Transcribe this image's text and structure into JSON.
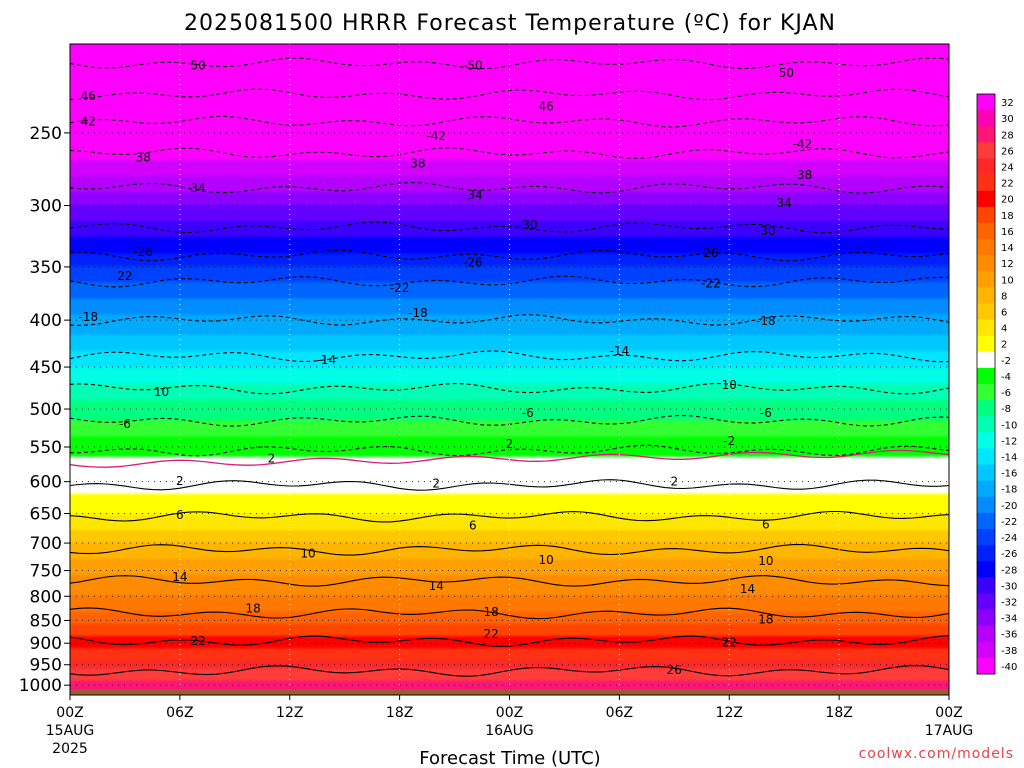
{
  "chart_data": {
    "type": "heatmap",
    "title": "2025081500 HRRR Forecast Temperature (ºC) for KJAN",
    "xlabel": "Forecast Time (UTC)",
    "ylabel": "",
    "y_scale": "log-pressure",
    "ylim": [
      1025,
      200
    ],
    "y_ticks": [
      250,
      300,
      350,
      400,
      450,
      500,
      550,
      600,
      650,
      700,
      750,
      800,
      850,
      900,
      950,
      1000
    ],
    "x_ticks": [
      {
        "hour": 0,
        "label": "00Z",
        "sub1": "15AUG",
        "sub2": "2025"
      },
      {
        "hour": 6,
        "label": "06Z",
        "sub1": "",
        "sub2": ""
      },
      {
        "hour": 12,
        "label": "12Z",
        "sub1": "",
        "sub2": ""
      },
      {
        "hour": 18,
        "label": "18Z",
        "sub1": "",
        "sub2": ""
      },
      {
        "hour": 24,
        "label": "00Z",
        "sub1": "16AUG",
        "sub2": ""
      },
      {
        "hour": 30,
        "label": "06Z",
        "sub1": "",
        "sub2": ""
      },
      {
        "hour": 36,
        "label": "12Z",
        "sub1": "",
        "sub2": ""
      },
      {
        "hour": 42,
        "label": "18Z",
        "sub1": "",
        "sub2": ""
      },
      {
        "hour": 48,
        "label": "00Z",
        "sub1": "17AUG",
        "sub2": ""
      }
    ],
    "grid": true,
    "surface_pressure": 1010,
    "surface_color": "#9c5a35",
    "colorbar_labels": [
      32,
      30,
      28,
      26,
      24,
      22,
      20,
      18,
      16,
      14,
      12,
      10,
      8,
      6,
      4,
      2,
      -2,
      -4,
      -6,
      -8,
      -10,
      -12,
      -14,
      -16,
      -18,
      -20,
      -22,
      -24,
      -26,
      -28,
      -30,
      -32,
      -34,
      -36,
      -38,
      -40
    ],
    "colorbar_colors": [
      "#ff00ff",
      "#ff00b4",
      "#ff1478",
      "#ff3c3c",
      "#ff2828",
      "#ff3214",
      "#ff0000",
      "#ff4600",
      "#ff6400",
      "#ff7800",
      "#ff8c00",
      "#ffa000",
      "#ffb400",
      "#ffc800",
      "#ffe600",
      "#ffff00",
      "#ffffff",
      "#00ff00",
      "#33ff33",
      "#00ff7f",
      "#00ffb4",
      "#00ffe6",
      "#00e6ff",
      "#00c8ff",
      "#00aaff",
      "#008cff",
      "#0064ff",
      "#0040ff",
      "#0020ff",
      "#0000ff",
      "#3c00ff",
      "#6400ff",
      "#8c00ff",
      "#b400ff",
      "#d200ff",
      "#ff00ff"
    ],
    "profile_pressure": [
      1000,
      950,
      900,
      850,
      800,
      750,
      700,
      650,
      600,
      550,
      500,
      450,
      400,
      350,
      300,
      250,
      200
    ],
    "profile_temperature": [
      29,
      25,
      21,
      17.5,
      14,
      11.5,
      8,
      4,
      0.5,
      -3,
      -7,
      -12,
      -17.5,
      -24,
      -32,
      -42,
      -52
    ],
    "contours": [
      {
        "value": -50,
        "label": "-50",
        "pressure": 210,
        "dashed": true
      },
      {
        "value": -46,
        "label": "46",
        "pressure": 227,
        "dashed": true
      },
      {
        "value": -42,
        "label": "-42",
        "pressure": 243,
        "dashed": true
      },
      {
        "value": -38,
        "label": "38",
        "pressure": 263,
        "dashed": true
      },
      {
        "value": -34,
        "label": "-34",
        "pressure": 287,
        "dashed": true
      },
      {
        "value": -30,
        "label": "-30",
        "pressure": 317,
        "dashed": true
      },
      {
        "value": -26,
        "label": "-26",
        "pressure": 340,
        "dashed": true
      },
      {
        "value": -22,
        "label": "-22",
        "pressure": 363,
        "dashed": true
      },
      {
        "value": -18,
        "label": "-18",
        "pressure": 400,
        "dashed": true
      },
      {
        "value": -14,
        "label": "-14",
        "pressure": 438,
        "dashed": true
      },
      {
        "value": -10,
        "label": "10",
        "pressure": 475,
        "dashed": true
      },
      {
        "value": -6,
        "label": "-6",
        "pressure": 515,
        "dashed": true
      },
      {
        "value": -2,
        "label": "-2",
        "pressure": 555,
        "dashed": true
      },
      {
        "value": 2,
        "label": "2",
        "pressure": 605,
        "dashed": false
      },
      {
        "value": 6,
        "label": "6",
        "pressure": 655,
        "dashed": false
      },
      {
        "value": 10,
        "label": "10",
        "pressure": 712,
        "dashed": false
      },
      {
        "value": 14,
        "label": "14",
        "pressure": 770,
        "dashed": false
      },
      {
        "value": 18,
        "label": "18",
        "pressure": 835,
        "dashed": false
      },
      {
        "value": 22,
        "label": "22",
        "pressure": 895,
        "dashed": false
      },
      {
        "value": 26,
        "label": "26",
        "pressure": 965,
        "dashed": false
      }
    ],
    "label_positions": [
      {
        "label": "50",
        "hour": 7,
        "pressure": 211
      },
      {
        "label": "-50",
        "hour": 22,
        "pressure": 211
      },
      {
        "label": "-50",
        "hour": 39,
        "pressure": 215
      },
      {
        "label": "46",
        "hour": 1,
        "pressure": 228
      },
      {
        "label": "46",
        "hour": 26,
        "pressure": 234
      },
      {
        "label": "42",
        "hour": 1,
        "pressure": 243
      },
      {
        "label": "-42",
        "hour": 20,
        "pressure": 252
      },
      {
        "label": "-42",
        "hour": 40,
        "pressure": 257
      },
      {
        "label": "38",
        "hour": 4,
        "pressure": 266
      },
      {
        "label": "38",
        "hour": 19,
        "pressure": 270
      },
      {
        "label": "-38",
        "hour": 40,
        "pressure": 278
      },
      {
        "label": "34",
        "hour": 7,
        "pressure": 287
      },
      {
        "label": "-34",
        "hour": 22,
        "pressure": 292
      },
      {
        "label": "34",
        "hour": 39,
        "pressure": 298
      },
      {
        "label": "-30",
        "hour": 25,
        "pressure": 315
      },
      {
        "label": "-30",
        "hour": 38,
        "pressure": 320
      },
      {
        "label": "-26",
        "hour": 4,
        "pressure": 337
      },
      {
        "label": "-26",
        "hour": 22,
        "pressure": 346
      },
      {
        "label": "26",
        "hour": 35,
        "pressure": 338
      },
      {
        "label": "22",
        "hour": 3,
        "pressure": 358
      },
      {
        "label": "-22",
        "hour": 18,
        "pressure": 369
      },
      {
        "label": "-22",
        "hour": 35,
        "pressure": 365
      },
      {
        "label": "-18",
        "hour": 1,
        "pressure": 397
      },
      {
        "label": "-18",
        "hour": 19,
        "pressure": 393
      },
      {
        "label": "-18",
        "hour": 38,
        "pressure": 401
      },
      {
        "label": "-14",
        "hour": 14,
        "pressure": 442
      },
      {
        "label": "-14",
        "hour": 30,
        "pressure": 432
      },
      {
        "label": "10",
        "hour": 5,
        "pressure": 479
      },
      {
        "label": "10",
        "hour": 36,
        "pressure": 471
      },
      {
        "label": "-6",
        "hour": 3,
        "pressure": 519
      },
      {
        "label": "-6",
        "hour": 25,
        "pressure": 505
      },
      {
        "label": "-6",
        "hour": 38,
        "pressure": 505
      },
      {
        "label": "-2",
        "hour": 36,
        "pressure": 542
      },
      {
        "label": "2",
        "hour": 24,
        "pressure": 546
      },
      {
        "label": "2",
        "hour": 11,
        "pressure": 566
      },
      {
        "label": "2",
        "hour": 6,
        "pressure": 599
      },
      {
        "label": "2",
        "hour": 20,
        "pressure": 603
      },
      {
        "label": "2",
        "hour": 33,
        "pressure": 600
      },
      {
        "label": "6",
        "hour": 6,
        "pressure": 652
      },
      {
        "label": "6",
        "hour": 22,
        "pressure": 670
      },
      {
        "label": "6",
        "hour": 38,
        "pressure": 668
      },
      {
        "label": "10",
        "hour": 13,
        "pressure": 719
      },
      {
        "label": "10",
        "hour": 26,
        "pressure": 730
      },
      {
        "label": "10",
        "hour": 38,
        "pressure": 732
      },
      {
        "label": "14",
        "hour": 6,
        "pressure": 762
      },
      {
        "label": "14",
        "hour": 20,
        "pressure": 780
      },
      {
        "label": "14",
        "hour": 37,
        "pressure": 786
      },
      {
        "label": "18",
        "hour": 10,
        "pressure": 825
      },
      {
        "label": "18",
        "hour": 23,
        "pressure": 832
      },
      {
        "label": "18",
        "hour": 38,
        "pressure": 848
      },
      {
        "label": "22",
        "hour": 7,
        "pressure": 895
      },
      {
        "label": "22",
        "hour": 23,
        "pressure": 880
      },
      {
        "label": "22",
        "hour": 36,
        "pressure": 899
      },
      {
        "label": "26",
        "hour": 33,
        "pressure": 963
      }
    ]
  },
  "credit": "coolwx.com/models"
}
